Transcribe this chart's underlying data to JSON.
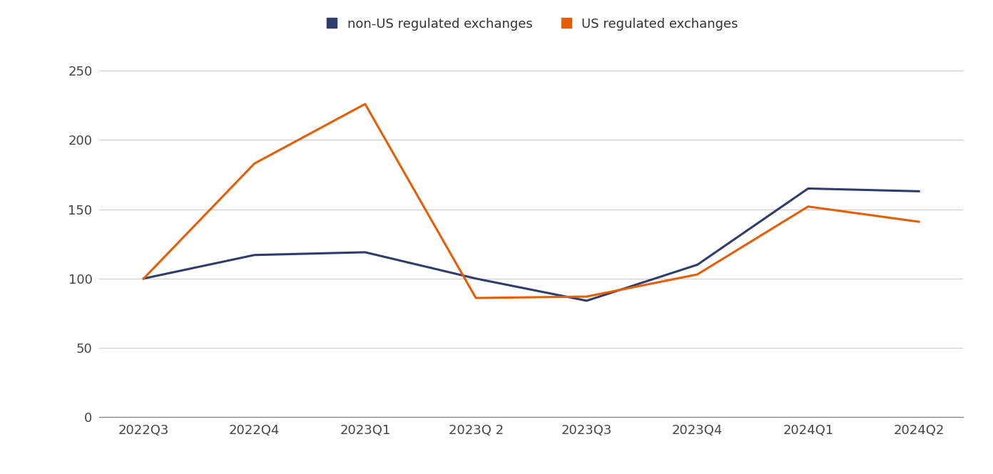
{
  "categories": [
    "2022Q3",
    "2022Q4",
    "2023Q1",
    "2023Q 2",
    "2023Q3",
    "2023Q4",
    "2024Q1",
    "2024Q2"
  ],
  "non_us": [
    100,
    117,
    119,
    100,
    84,
    110,
    165,
    163
  ],
  "us": [
    100,
    183,
    226,
    86,
    87,
    103,
    152,
    141
  ],
  "non_us_color": "#2E3D6B",
  "us_color": "#E85D04",
  "non_us_label": "non-US regulated exchanges",
  "us_label": "US regulated exchanges",
  "ylim": [
    0,
    260
  ],
  "yticks": [
    0,
    50,
    100,
    150,
    200,
    250
  ],
  "linewidth": 2.2,
  "background_color": "#ffffff",
  "grid_color": "#cccccc",
  "tick_fontsize": 13,
  "legend_fontsize": 13
}
